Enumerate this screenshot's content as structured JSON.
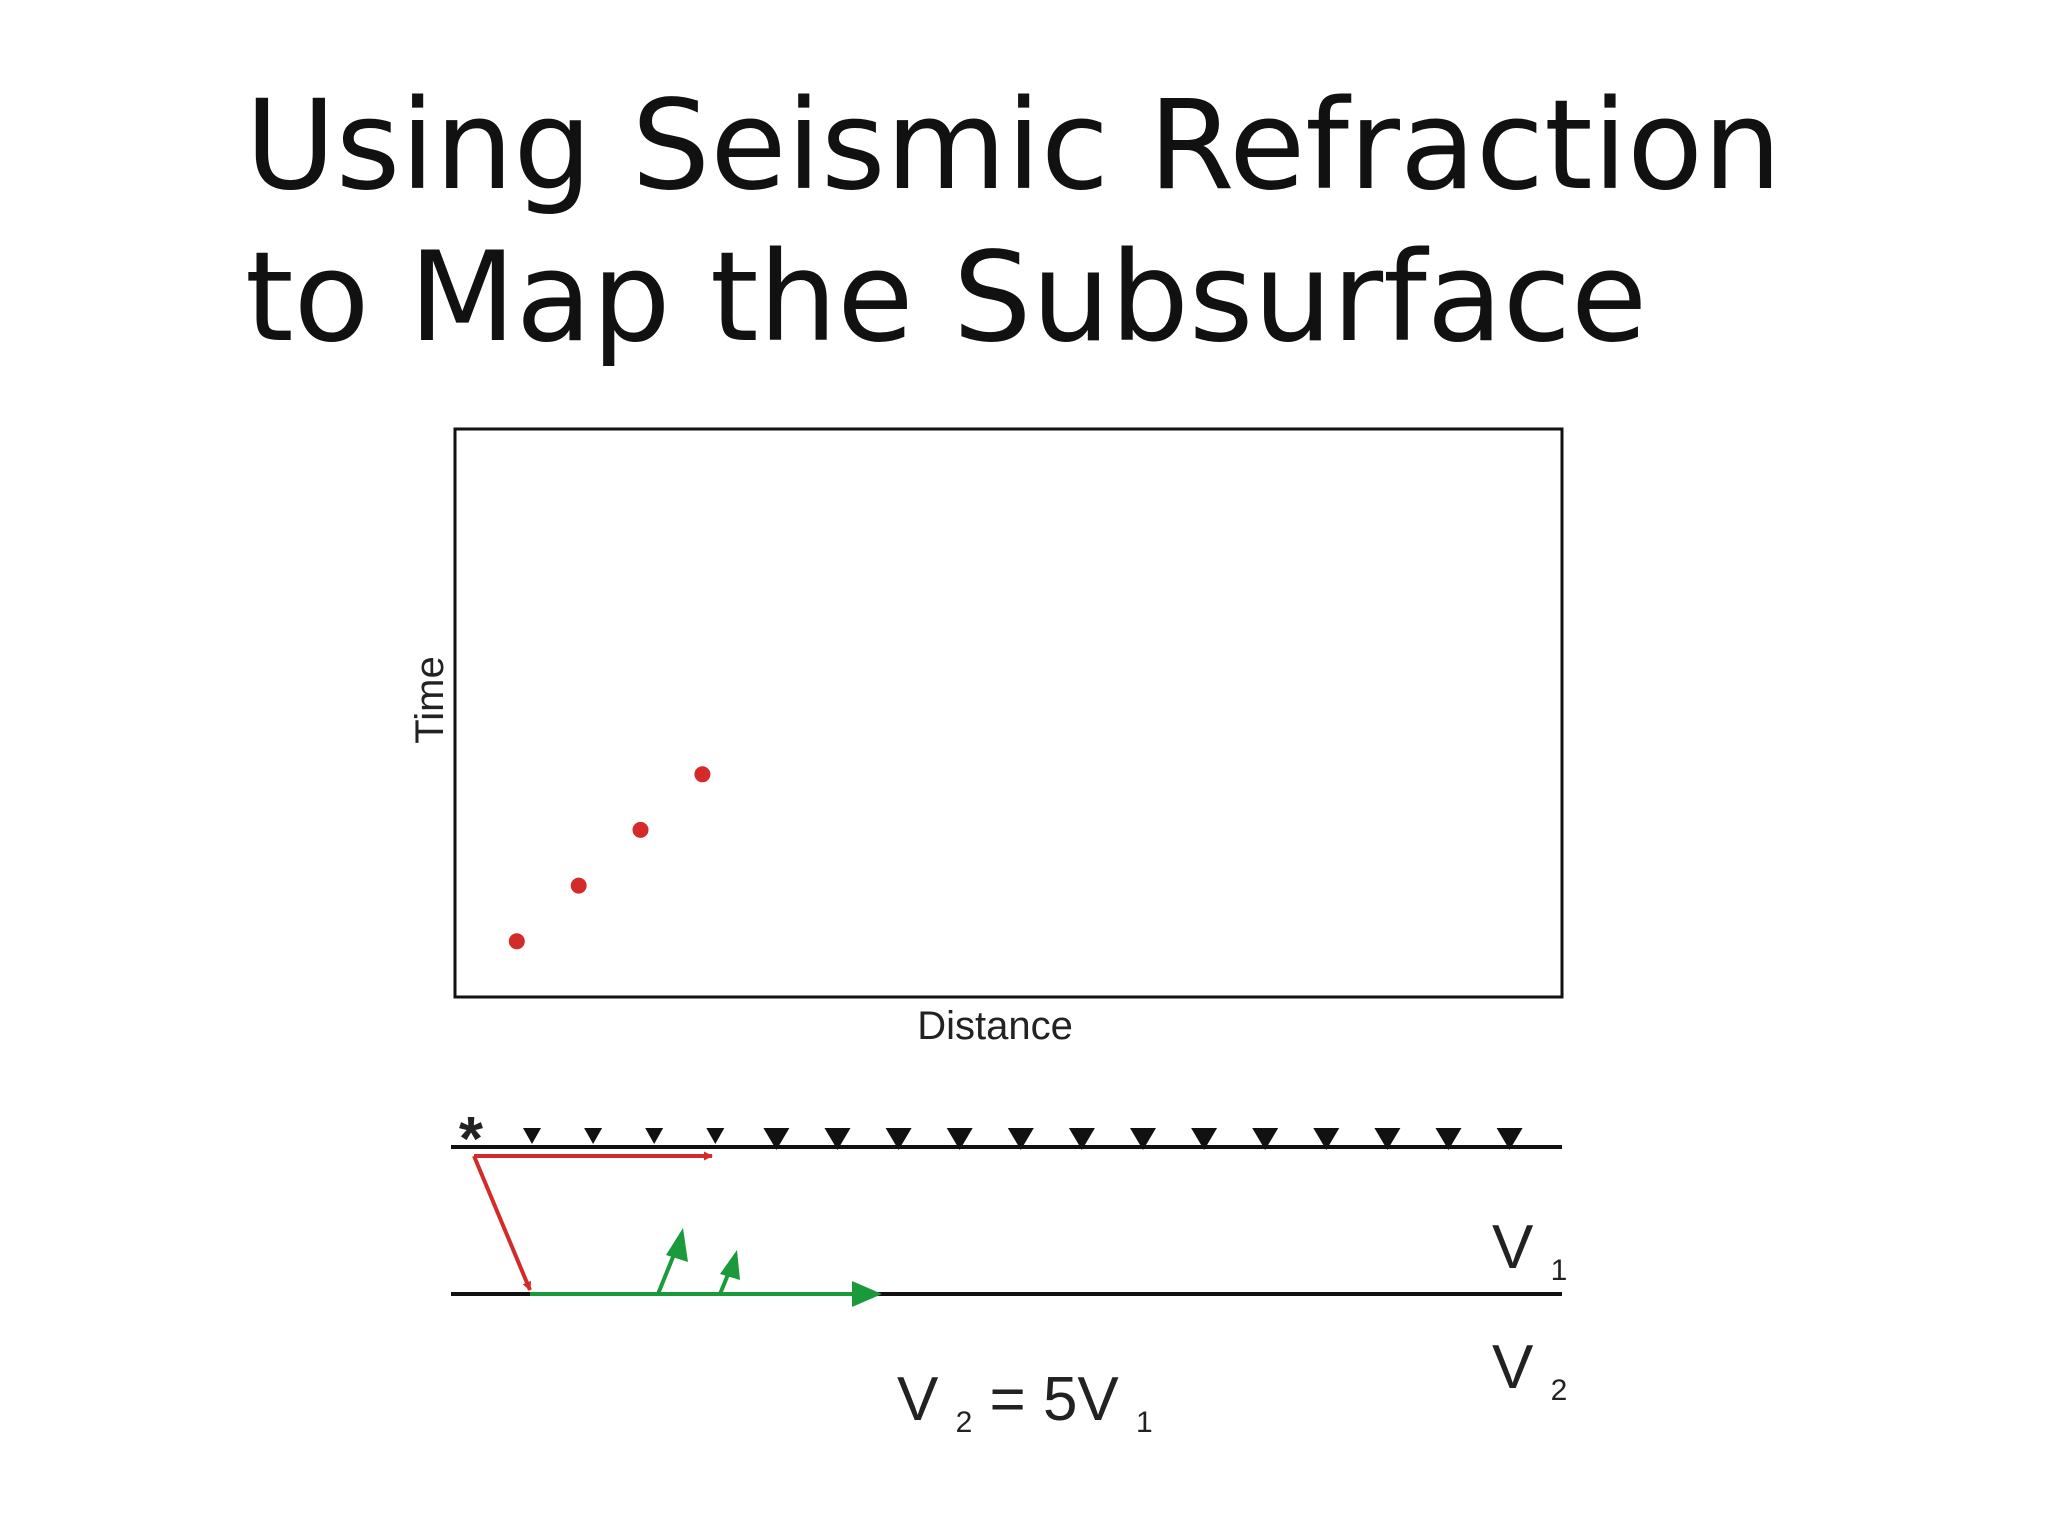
{
  "title": {
    "line1": "Using Seismic Refraction",
    "line2": "to Map the Subsurface"
  },
  "chart_data": {
    "type": "scatter",
    "xlabel": "Distance",
    "ylabel": "Time",
    "x": [
      1,
      2,
      3,
      4
    ],
    "y": [
      1,
      2,
      3,
      4
    ],
    "xlim": [
      0,
      17.9
    ],
    "ylim": [
      0,
      10.2
    ],
    "marker_color": "#d32a2a",
    "grid": false
  },
  "diagram": {
    "source_symbol": "*",
    "geophone_count": 17,
    "layer1_label": {
      "main": "V",
      "sub": "1"
    },
    "layer2_label": {
      "main": "V",
      "sub": "2"
    },
    "equation": {
      "v": "V",
      "sub_left": "2",
      "middle": "= 5V",
      "sub_right": "1"
    },
    "direct_ray_color": "#d32a2a",
    "refracted_ray_color": "#1a9a3a",
    "line_color": "#111111"
  }
}
